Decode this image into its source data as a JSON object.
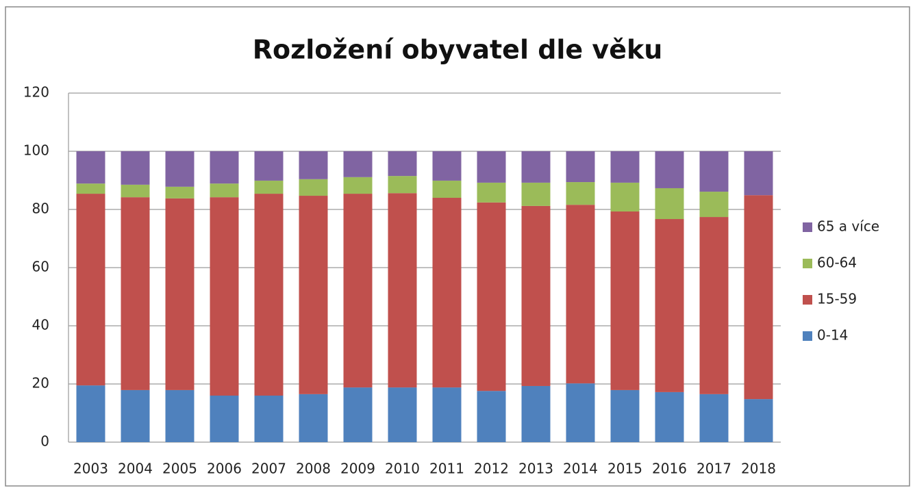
{
  "chart_data": {
    "type": "stacked_bar",
    "title": "Rozložení obyvatel dle věku",
    "categories": [
      "2003",
      "2004",
      "2005",
      "2006",
      "2007",
      "2008",
      "2009",
      "2010",
      "2011",
      "2012",
      "2013",
      "2014",
      "2015",
      "2016",
      "2017",
      "2018"
    ],
    "series": [
      {
        "name": "0-14",
        "color": "#4f81bd",
        "values": [
          19.5,
          17.9,
          17.9,
          16.0,
          16.0,
          16.5,
          18.8,
          18.8,
          18.8,
          17.6,
          19.3,
          20.2,
          17.9,
          17.2,
          16.5,
          14.8
        ]
      },
      {
        "name": "15-59",
        "color": "#c0504d",
        "values": [
          65.9,
          66.3,
          65.9,
          68.2,
          69.4,
          68.2,
          66.6,
          66.8,
          65.2,
          64.8,
          61.9,
          61.4,
          61.4,
          59.5,
          60.9,
          70.1
        ]
      },
      {
        "name": "60-64",
        "color": "#9bbb59",
        "values": [
          3.5,
          4.3,
          4.0,
          4.7,
          4.5,
          5.7,
          5.7,
          5.9,
          5.9,
          6.8,
          8.0,
          7.8,
          9.9,
          10.6,
          8.7,
          0
        ]
      },
      {
        "name": "65 a více",
        "color": "#8064a2",
        "values": [
          11.1,
          11.5,
          12.2,
          11.1,
          10.1,
          9.6,
          8.9,
          8.5,
          10.1,
          10.8,
          10.8,
          10.6,
          10.8,
          12.7,
          13.9,
          15.1
        ]
      }
    ],
    "ylim": [
      0,
      120
    ],
    "yticks": [
      0,
      20,
      40,
      60,
      80,
      100,
      120
    ],
    "grid": true,
    "legend": "right"
  }
}
